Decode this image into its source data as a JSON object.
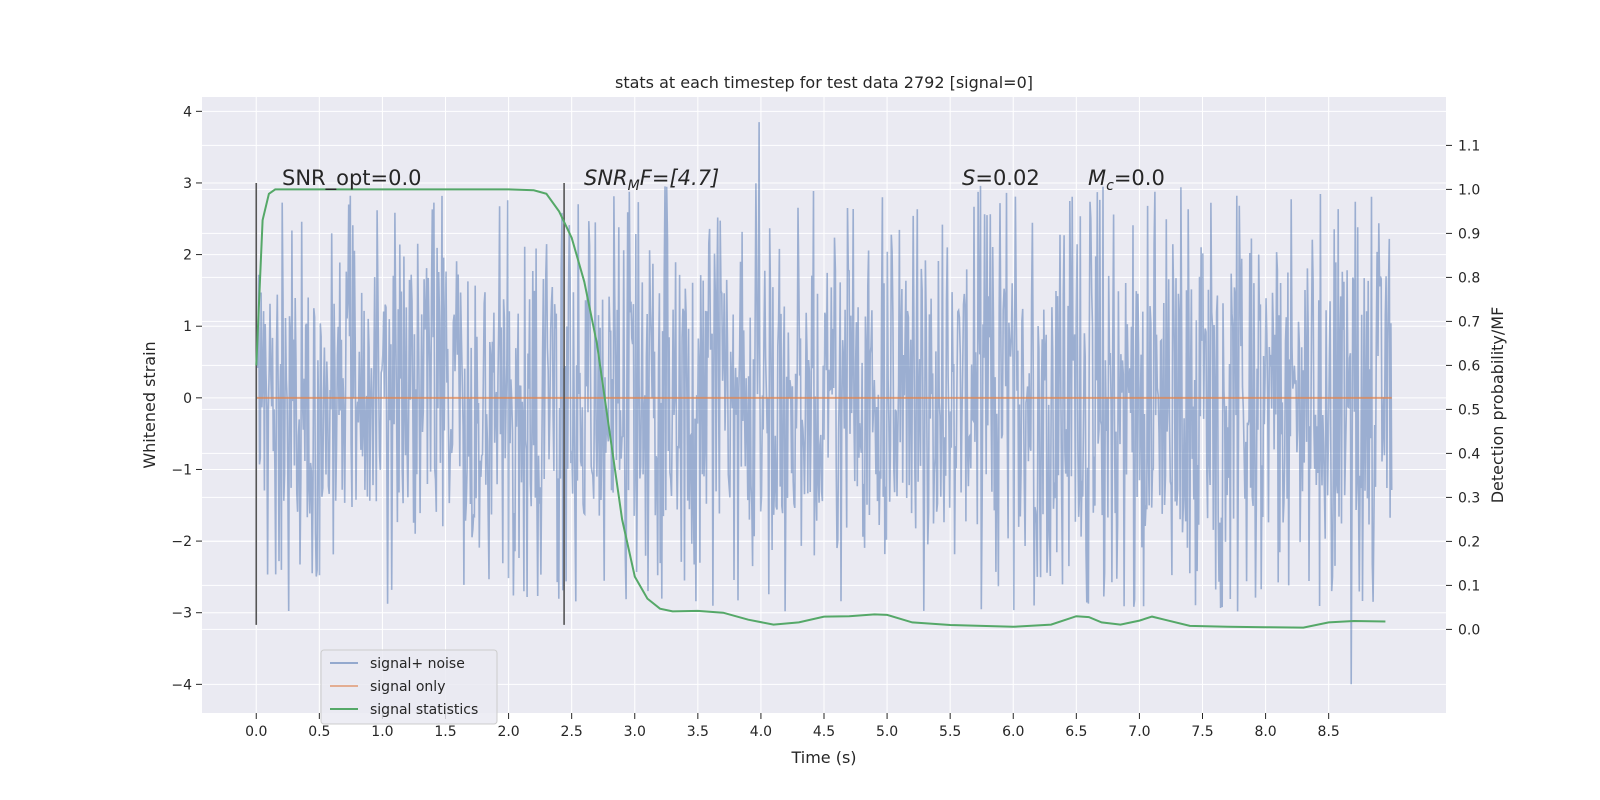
{
  "chart_data": {
    "type": "line",
    "title": "stats at each timestep for test data 2792 [signal=0]",
    "xlabel": "Time (s)",
    "ylabel": "Whitened strain",
    "y2label": "Detection probability/MF",
    "xlim": [
      -0.43,
      9.43
    ],
    "ylim": [
      -4.4,
      4.2
    ],
    "y2lim": [
      -0.19,
      1.21
    ],
    "x_ticks": [
      "0.0",
      "0.5",
      "1.0",
      "1.5",
      "2.0",
      "2.5",
      "3.0",
      "3.5",
      "4.0",
      "4.5",
      "5.0",
      "5.5",
      "6.0",
      "6.5",
      "7.0",
      "7.5",
      "8.0",
      "8.5"
    ],
    "y_ticks": [
      "4",
      "3",
      "2",
      "1",
      "0",
      "−1",
      "−2",
      "−3",
      "−4"
    ],
    "y2_ticks": [
      "1.1",
      "1.0",
      "0.9",
      "0.8",
      "0.7",
      "0.6",
      "0.5",
      "0.4",
      "0.3",
      "0.2",
      "0.1",
      "0.0"
    ],
    "grid": true,
    "legend_position": "lower-left",
    "annotations": {
      "snr_opt": "SNR_opt=0.0",
      "snr_mf_main": "SNR",
      "snr_mf_sub": "M",
      "snr_mf_rest": "F=[4.7]",
      "s_main": "S",
      "s_rest": "=0.02",
      "mc_main": "M",
      "mc_sub": "c",
      "mc_rest": "=0.0"
    },
    "vertical_markers": [
      0.0,
      2.44
    ],
    "series": [
      {
        "name": "signal+ noise",
        "color": "#4C72B0",
        "opacity": 0.5,
        "x_range": [
          0.0,
          9.0
        ],
        "band_low": -1.8,
        "band_high": 1.8,
        "spike_range": [
          -4.0,
          3.85
        ],
        "description_values": {
          "max": 3.85,
          "min": -4.0
        }
      },
      {
        "name": "signal only",
        "color": "#DD8452",
        "opacity": 0.5,
        "x": [
          0.0,
          9.0
        ],
        "y": [
          0.0,
          0.0
        ]
      },
      {
        "name": "signal statistics",
        "color": "#55A868",
        "axis": "right",
        "x": [
          0.0,
          0.05,
          0.1,
          0.15,
          0.2,
          0.3,
          0.5,
          1.0,
          1.5,
          2.0,
          2.2,
          2.3,
          2.4,
          2.5,
          2.6,
          2.7,
          2.8,
          2.9,
          3.0,
          3.1,
          3.2,
          3.3,
          3.5,
          3.7,
          3.9,
          4.1,
          4.3,
          4.5,
          4.7,
          4.9,
          5.0,
          5.2,
          5.5,
          6.0,
          6.3,
          6.5,
          6.6,
          6.7,
          6.85,
          7.0,
          7.1,
          7.2,
          7.4,
          7.7,
          8.0,
          8.3,
          8.5,
          8.7,
          8.95
        ],
        "y": [
          0.6,
          0.93,
          0.99,
          1.0,
          1.0,
          1.0,
          1.0,
          1.0,
          1.0,
          1.0,
          0.998,
          0.99,
          0.95,
          0.89,
          0.79,
          0.65,
          0.45,
          0.25,
          0.12,
          0.07,
          0.047,
          0.041,
          0.042,
          0.038,
          0.022,
          0.011,
          0.016,
          0.029,
          0.03,
          0.034,
          0.033,
          0.016,
          0.01,
          0.006,
          0.011,
          0.03,
          0.028,
          0.016,
          0.011,
          0.02,
          0.029,
          0.022,
          0.008,
          0.006,
          0.005,
          0.004,
          0.016,
          0.019,
          0.018
        ]
      }
    ]
  }
}
